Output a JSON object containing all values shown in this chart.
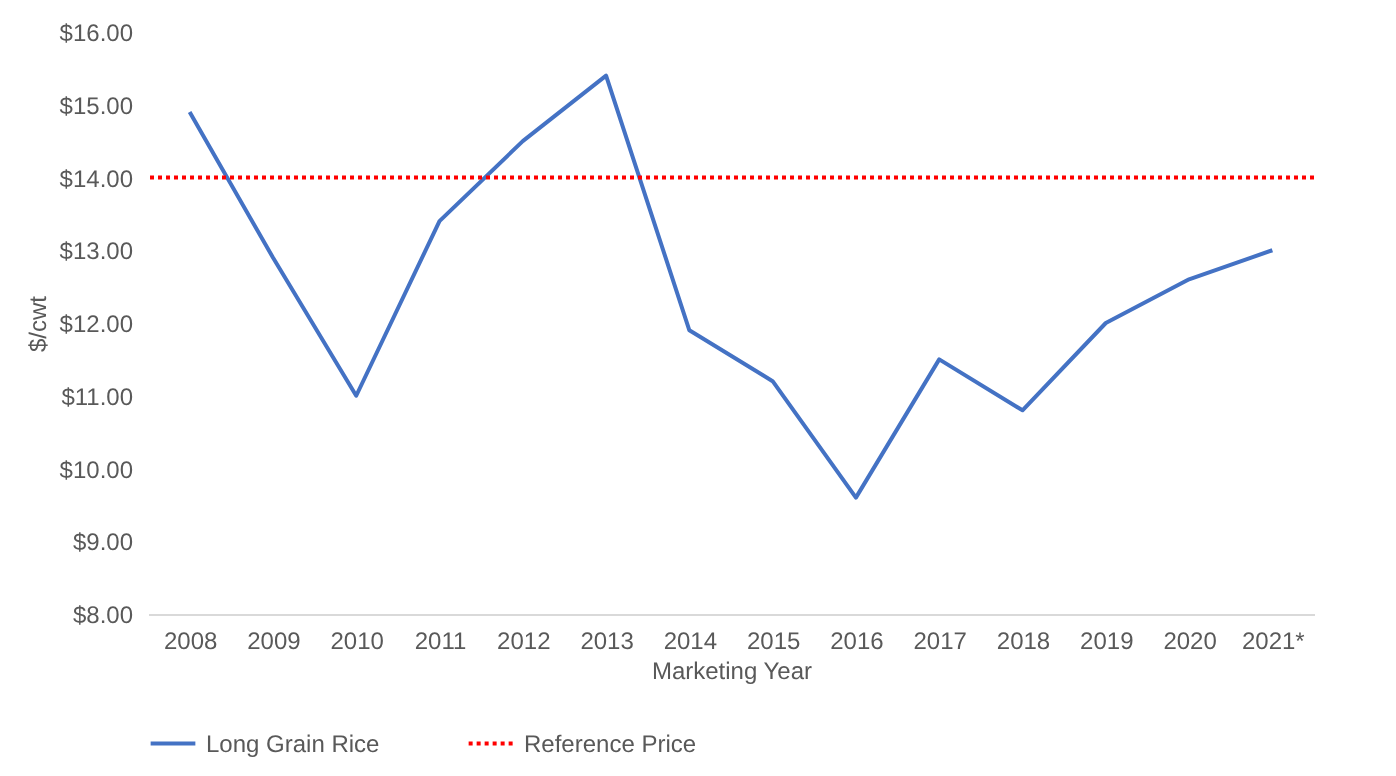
{
  "chart_data": {
    "type": "line",
    "xlabel": "Marketing Year",
    "ylabel": "$/cwt",
    "categories": [
      "2008",
      "2009",
      "2010",
      "2011",
      "2012",
      "2013",
      "2014",
      "2015",
      "2016",
      "2017",
      "2018",
      "2019",
      "2020",
      "2021*"
    ],
    "series": [
      {
        "name": "Long Grain Rice",
        "color": "#4472c4",
        "values": [
          14.9,
          12.9,
          11.0,
          13.4,
          14.5,
          15.4,
          11.9,
          11.2,
          9.6,
          11.5,
          10.8,
          12.0,
          12.6,
          13.0
        ]
      }
    ],
    "ref_lines": [
      {
        "axis": "y",
        "value": 14,
        "label": "Reference Price",
        "color": "#ff0000",
        "line_style": "dotted"
      }
    ],
    "ylim": [
      8,
      16
    ],
    "yticks": [
      {
        "value": 8,
        "label": "$8.00"
      },
      {
        "value": 9,
        "label": "$9.00"
      },
      {
        "value": 10,
        "label": "$10.00"
      },
      {
        "value": 11,
        "label": "$11.00"
      },
      {
        "value": 12,
        "label": "$12.00"
      },
      {
        "value": 13,
        "label": "$13.00"
      },
      {
        "value": 14,
        "label": "$14.00"
      },
      {
        "value": 15,
        "label": "$15.00"
      },
      {
        "value": 16,
        "label": "$16.00"
      }
    ],
    "grid": false,
    "legend": "bottom",
    "marker": "none",
    "line_style": "solid"
  }
}
